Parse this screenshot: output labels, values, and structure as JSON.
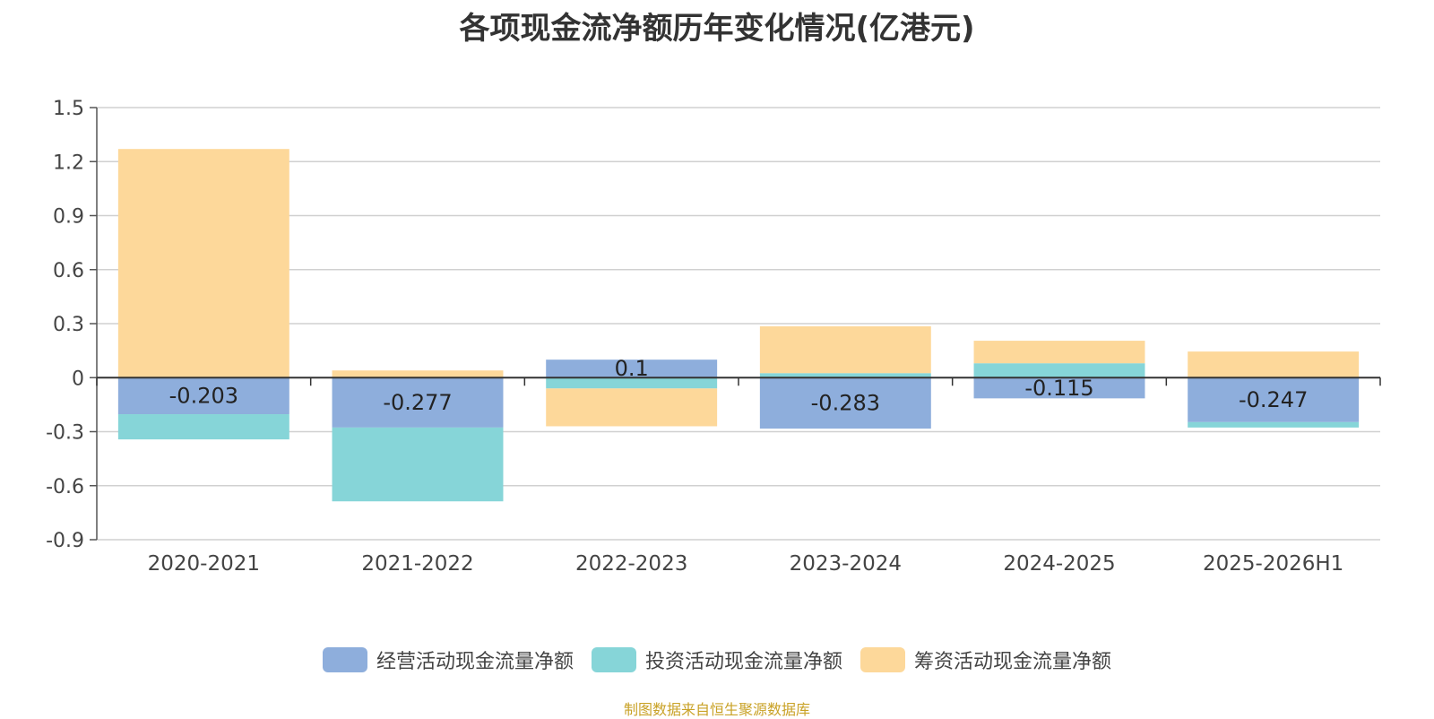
{
  "chart_data": {
    "type": "bar",
    "stacked": true,
    "title": "各项现金流净额历年变化情况(亿港元)",
    "categories": [
      "2020-2021",
      "2021-2022",
      "2022-2023",
      "2023-2024",
      "2024-2025",
      "2025-2026H1"
    ],
    "series": [
      {
        "name": "经营活动现金流量净额",
        "color": "#8eaedc",
        "values": [
          -0.203,
          -0.277,
          0.1,
          -0.283,
          -0.115,
          -0.247
        ],
        "labels": [
          "-0.203",
          "-0.277",
          "0.1",
          "-0.283",
          "-0.115",
          "-0.247"
        ]
      },
      {
        "name": "投资活动现金流量净额",
        "color": "#86d5d8",
        "values": [
          -0.14,
          -0.41,
          -0.06,
          0.025,
          0.08,
          -0.03
        ]
      },
      {
        "name": "筹资活动现金流量净额",
        "color": "#fdd89a",
        "values": [
          1.27,
          0.04,
          -0.21,
          0.26,
          0.125,
          0.145
        ]
      }
    ],
    "ylim": [
      -0.9,
      1.5
    ],
    "yticks": [
      1.5,
      1.2,
      0.9,
      0.6,
      0.3,
      0,
      -0.3,
      -0.6,
      -0.9
    ],
    "ytick_labels": [
      "1.5",
      "1.2",
      "0.9",
      "0.6",
      "0.3",
      "0",
      "-0.3",
      "-0.6",
      "-0.9"
    ],
    "grid": true,
    "legend_position": "bottom-center",
    "xlabel": "",
    "ylabel": ""
  },
  "source_note": "制图数据来自恒生聚源数据库"
}
